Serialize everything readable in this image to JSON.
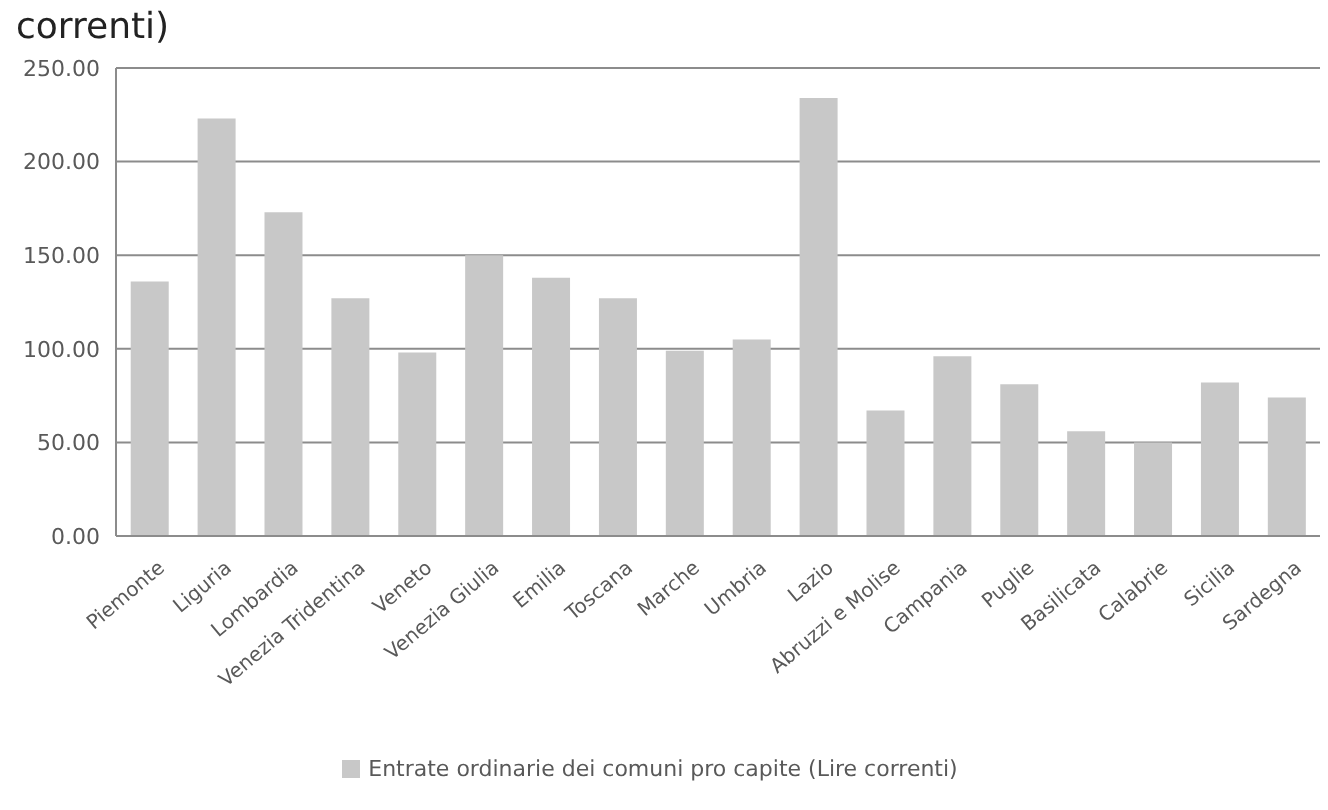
{
  "chart_data": {
    "type": "bar",
    "title": "correnti)",
    "categories": [
      "Piemonte",
      "Liguria",
      "Lombardia",
      "Venezia Tridentina",
      "Veneto",
      "Venezia Giulia",
      "Emilia",
      "Toscana",
      "Marche",
      "Umbria",
      "Lazio",
      "Abruzzi e Molise",
      "Campania",
      "Puglie",
      "Basilicata",
      "Calabrie",
      "Sicilia",
      "Sardegna"
    ],
    "series": [
      {
        "name": "Entrate ordinarie dei comuni pro capite (Lire correnti)",
        "color": "#c8c8c8",
        "values": [
          136,
          223,
          173,
          127,
          98,
          150,
          138,
          127,
          99,
          105,
          234,
          67,
          96,
          81,
          56,
          50,
          82,
          74
        ]
      }
    ],
    "ylim": [
      0,
      250
    ],
    "yticks": [
      {
        "value": 0,
        "label": "0.00"
      },
      {
        "value": 50,
        "label": "50.00"
      },
      {
        "value": 100,
        "label": "100.00"
      },
      {
        "value": 150,
        "label": "150.00"
      },
      {
        "value": 200,
        "label": "200.00"
      },
      {
        "value": 250,
        "label": "250.00"
      }
    ],
    "grid": "y",
    "legend": "bottom"
  }
}
